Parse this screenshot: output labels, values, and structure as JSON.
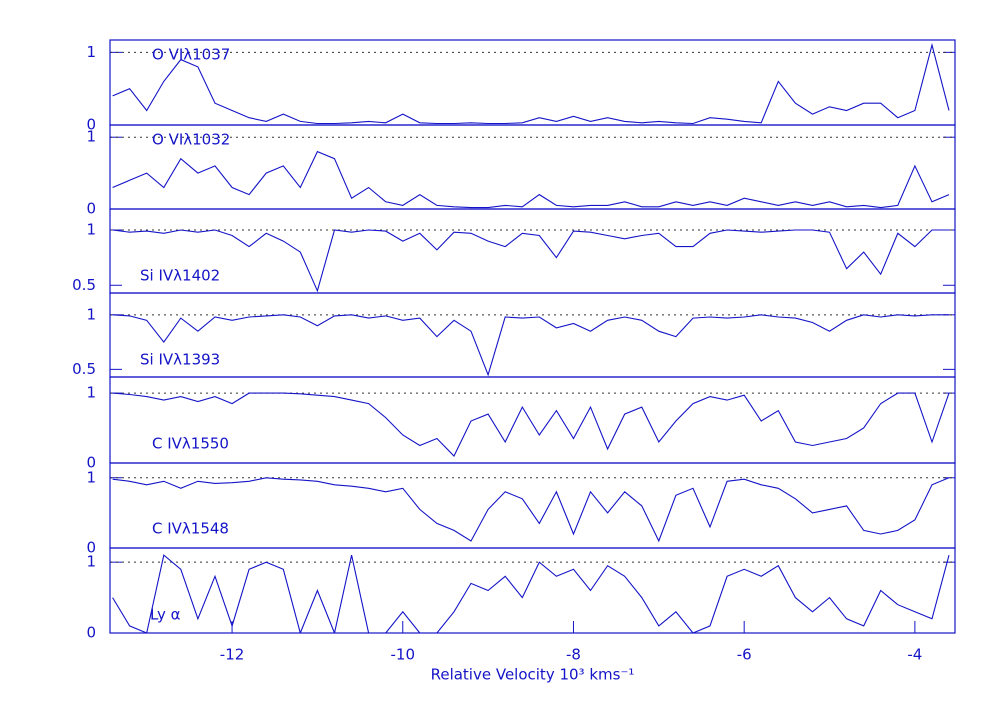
{
  "chart_data": [
    {
      "type": "line",
      "label": "O VIλ1037",
      "color": "#1414c8",
      "xlim": [
        -13.43,
        -3.53
      ],
      "ylim": [
        0,
        1.17
      ],
      "yticks": [
        0,
        1
      ],
      "grid": true,
      "x": [
        -13.4,
        -13.2,
        -13.0,
        -12.8,
        -12.6,
        -12.4,
        -12.2,
        -12.0,
        -11.8,
        -11.6,
        -11.4,
        -11.2,
        -11.0,
        -10.8,
        -10.6,
        -10.4,
        -10.2,
        -10.0,
        -9.8,
        -9.6,
        -9.4,
        -9.2,
        -9.0,
        -8.8,
        -8.6,
        -8.4,
        -8.2,
        -8.0,
        -7.8,
        -7.6,
        -7.4,
        -7.2,
        -7.0,
        -6.8,
        -6.6,
        -6.4,
        -6.2,
        -6.0,
        -5.8,
        -5.6,
        -5.4,
        -5.2,
        -5.0,
        -4.8,
        -4.6,
        -4.4,
        -4.2,
        -4.0,
        -3.8,
        -3.6
      ],
      "values": [
        0.4,
        0.5,
        0.2,
        0.6,
        0.9,
        0.8,
        0.3,
        0.2,
        0.1,
        0.05,
        0.15,
        0.05,
        0.02,
        0.02,
        0.03,
        0.05,
        0.03,
        0.15,
        0.03,
        0.02,
        0.02,
        0.03,
        0.02,
        0.02,
        0.03,
        0.1,
        0.05,
        0.12,
        0.05,
        0.1,
        0.05,
        0.03,
        0.05,
        0.03,
        0.02,
        0.1,
        0.08,
        0.05,
        0.03,
        0.6,
        0.3,
        0.15,
        0.25,
        0.2,
        0.3,
        0.3,
        0.1,
        0.2,
        1.1,
        0.2
      ]
    },
    {
      "type": "line",
      "label": "O VIλ1032",
      "color": "#1414c8",
      "xlim": [
        -13.43,
        -3.53
      ],
      "ylim": [
        0,
        1.17
      ],
      "yticks": [
        0,
        1
      ],
      "grid": true,
      "x": [
        -13.4,
        -13.2,
        -13.0,
        -12.8,
        -12.6,
        -12.4,
        -12.2,
        -12.0,
        -11.8,
        -11.6,
        -11.4,
        -11.2,
        -11.0,
        -10.8,
        -10.6,
        -10.4,
        -10.2,
        -10.0,
        -9.8,
        -9.6,
        -9.4,
        -9.2,
        -9.0,
        -8.8,
        -8.6,
        -8.4,
        -8.2,
        -8.0,
        -7.8,
        -7.6,
        -7.4,
        -7.2,
        -7.0,
        -6.8,
        -6.6,
        -6.4,
        -6.2,
        -6.0,
        -5.8,
        -5.6,
        -5.4,
        -5.2,
        -5.0,
        -4.8,
        -4.6,
        -4.4,
        -4.2,
        -4.0,
        -3.8,
        -3.6
      ],
      "values": [
        0.3,
        0.4,
        0.5,
        0.3,
        0.7,
        0.5,
        0.6,
        0.3,
        0.2,
        0.5,
        0.6,
        0.3,
        0.8,
        0.7,
        0.15,
        0.3,
        0.1,
        0.05,
        0.2,
        0.05,
        0.03,
        0.02,
        0.02,
        0.05,
        0.03,
        0.2,
        0.05,
        0.03,
        0.05,
        0.05,
        0.1,
        0.03,
        0.03,
        0.1,
        0.05,
        0.1,
        0.05,
        0.15,
        0.1,
        0.05,
        0.1,
        0.05,
        0.1,
        0.03,
        0.05,
        0.02,
        0.05,
        0.6,
        0.1,
        0.2
      ]
    },
    {
      "type": "line",
      "label": "Si IVλ1402",
      "color": "#1414c8",
      "xlim": [
        -13.43,
        -3.53
      ],
      "ylim": [
        0.43,
        1.19
      ],
      "yticks": [
        0.5,
        1
      ],
      "grid": true,
      "x": [
        -13.4,
        -13.2,
        -13.0,
        -12.8,
        -12.6,
        -12.4,
        -12.2,
        -12.0,
        -11.8,
        -11.6,
        -11.4,
        -11.2,
        -11.0,
        -10.8,
        -10.6,
        -10.4,
        -10.2,
        -10.0,
        -9.8,
        -9.6,
        -9.4,
        -9.2,
        -9.0,
        -8.8,
        -8.6,
        -8.4,
        -8.2,
        -8.0,
        -7.8,
        -7.6,
        -7.4,
        -7.2,
        -7.0,
        -6.8,
        -6.6,
        -6.4,
        -6.2,
        -6.0,
        -5.8,
        -5.6,
        -5.4,
        -5.2,
        -5.0,
        -4.8,
        -4.6,
        -4.4,
        -4.2,
        -4.0,
        -3.8,
        -3.6
      ],
      "values": [
        1.0,
        0.98,
        0.99,
        0.97,
        1.0,
        0.98,
        1.0,
        0.95,
        0.85,
        0.97,
        0.9,
        0.8,
        0.45,
        1.0,
        0.98,
        1.0,
        0.99,
        0.9,
        0.97,
        0.82,
        0.98,
        0.97,
        0.9,
        0.85,
        0.97,
        0.95,
        0.75,
        0.99,
        0.98,
        0.95,
        0.92,
        0.95,
        0.97,
        0.85,
        0.85,
        0.97,
        1.0,
        0.99,
        0.98,
        0.99,
        1.0,
        1.0,
        0.98,
        0.65,
        0.8,
        0.6,
        0.97,
        0.85,
        1.0,
        1.0
      ]
    },
    {
      "type": "line",
      "label": "Si IVλ1393",
      "color": "#1414c8",
      "xlim": [
        -13.43,
        -3.53
      ],
      "ylim": [
        0.43,
        1.2
      ],
      "yticks": [
        0.5,
        1
      ],
      "grid": true,
      "x": [
        -13.4,
        -13.2,
        -13.0,
        -12.8,
        -12.6,
        -12.4,
        -12.2,
        -12.0,
        -11.8,
        -11.6,
        -11.4,
        -11.2,
        -11.0,
        -10.8,
        -10.6,
        -10.4,
        -10.2,
        -10.0,
        -9.8,
        -9.6,
        -9.4,
        -9.2,
        -9.0,
        -8.8,
        -8.6,
        -8.4,
        -8.2,
        -8.0,
        -7.8,
        -7.6,
        -7.4,
        -7.2,
        -7.0,
        -6.8,
        -6.6,
        -6.4,
        -6.2,
        -6.0,
        -5.8,
        -5.6,
        -5.4,
        -5.2,
        -5.0,
        -4.8,
        -4.6,
        -4.4,
        -4.2,
        -4.0,
        -3.8,
        -3.6
      ],
      "values": [
        1.0,
        0.99,
        0.95,
        0.75,
        0.97,
        0.85,
        0.98,
        0.95,
        0.98,
        0.99,
        1.0,
        0.98,
        0.9,
        0.99,
        1.0,
        0.97,
        0.99,
        0.95,
        0.97,
        0.8,
        0.95,
        0.85,
        0.45,
        0.98,
        0.97,
        0.98,
        0.88,
        0.92,
        0.85,
        0.95,
        0.98,
        0.95,
        0.85,
        0.8,
        0.97,
        0.98,
        0.97,
        0.98,
        1.0,
        0.98,
        0.97,
        0.93,
        0.85,
        0.95,
        1.0,
        0.98,
        1.0,
        0.99,
        1.0,
        1.0
      ]
    },
    {
      "type": "line",
      "label": "C IVλ1550",
      "color": "#1414c8",
      "xlim": [
        -13.43,
        -3.53
      ],
      "ylim": [
        0,
        1.23
      ],
      "yticks": [
        0,
        1
      ],
      "grid": true,
      "x": [
        -13.4,
        -13.2,
        -13.0,
        -12.8,
        -12.6,
        -12.4,
        -12.2,
        -12.0,
        -11.8,
        -11.6,
        -11.4,
        -11.2,
        -11.0,
        -10.8,
        -10.6,
        -10.4,
        -10.2,
        -10.0,
        -9.8,
        -9.6,
        -9.4,
        -9.2,
        -9.0,
        -8.8,
        -8.6,
        -8.4,
        -8.2,
        -8.0,
        -7.8,
        -7.6,
        -7.4,
        -7.2,
        -7.0,
        -6.8,
        -6.6,
        -6.4,
        -6.2,
        -6.0,
        -5.8,
        -5.6,
        -5.4,
        -5.2,
        -5.0,
        -4.8,
        -4.6,
        -4.4,
        -4.2,
        -4.0,
        -3.8,
        -3.6
      ],
      "values": [
        1.0,
        0.98,
        0.95,
        0.9,
        0.95,
        0.88,
        0.95,
        0.85,
        1.0,
        1.0,
        1.0,
        0.99,
        0.97,
        0.95,
        0.9,
        0.85,
        0.65,
        0.4,
        0.25,
        0.35,
        0.1,
        0.6,
        0.7,
        0.3,
        0.8,
        0.4,
        0.75,
        0.35,
        0.8,
        0.2,
        0.7,
        0.8,
        0.3,
        0.6,
        0.85,
        0.95,
        0.9,
        0.97,
        0.6,
        0.75,
        0.3,
        0.25,
        0.3,
        0.35,
        0.5,
        0.85,
        1.0,
        1.0,
        0.3,
        1.0
      ]
    },
    {
      "type": "line",
      "label": "C IVλ1548",
      "color": "#1414c8",
      "xlim": [
        -13.43,
        -3.53
      ],
      "ylim": [
        0,
        1.21
      ],
      "yticks": [
        0,
        1
      ],
      "grid": true,
      "x": [
        -13.4,
        -13.2,
        -13.0,
        -12.8,
        -12.6,
        -12.4,
        -12.2,
        -12.0,
        -11.8,
        -11.6,
        -11.4,
        -11.2,
        -11.0,
        -10.8,
        -10.6,
        -10.4,
        -10.2,
        -10.0,
        -9.8,
        -9.6,
        -9.4,
        -9.2,
        -9.0,
        -8.8,
        -8.6,
        -8.4,
        -8.2,
        -8.0,
        -7.8,
        -7.6,
        -7.4,
        -7.2,
        -7.0,
        -6.8,
        -6.6,
        -6.4,
        -6.2,
        -6.0,
        -5.8,
        -5.6,
        -5.4,
        -5.2,
        -5.0,
        -4.8,
        -4.6,
        -4.4,
        -4.2,
        -4.0,
        -3.8,
        -3.6
      ],
      "values": [
        0.98,
        0.95,
        0.9,
        0.95,
        0.85,
        0.95,
        0.92,
        0.93,
        0.95,
        1.0,
        0.98,
        0.97,
        0.95,
        0.9,
        0.88,
        0.85,
        0.8,
        0.85,
        0.55,
        0.35,
        0.25,
        0.1,
        0.55,
        0.8,
        0.7,
        0.35,
        0.8,
        0.2,
        0.8,
        0.5,
        0.8,
        0.6,
        0.1,
        0.75,
        0.85,
        0.3,
        0.95,
        0.98,
        0.9,
        0.85,
        0.7,
        0.5,
        0.55,
        0.6,
        0.25,
        0.2,
        0.25,
        0.4,
        0.9,
        1.0
      ]
    },
    {
      "type": "line",
      "label": "Ly α",
      "color": "#1414c8",
      "xlim": [
        -13.43,
        -3.53
      ],
      "ylim": [
        0,
        1.2
      ],
      "yticks": [
        0,
        1
      ],
      "grid": true,
      "xticks": [
        -12,
        -10,
        -8,
        -6,
        -4
      ],
      "xlabel": "Relative Velocity 10³ kms⁻¹",
      "x": [
        -13.4,
        -13.2,
        -13.0,
        -12.8,
        -12.6,
        -12.4,
        -12.2,
        -12.0,
        -11.8,
        -11.6,
        -11.4,
        -11.2,
        -11.0,
        -10.8,
        -10.6,
        -10.4,
        -10.2,
        -10.0,
        -9.8,
        -9.6,
        -9.4,
        -9.2,
        -9.0,
        -8.8,
        -8.6,
        -8.4,
        -8.2,
        -8.0,
        -7.8,
        -7.6,
        -7.4,
        -7.2,
        -7.0,
        -6.8,
        -6.6,
        -6.4,
        -6.2,
        -6.0,
        -5.8,
        -5.6,
        -5.4,
        -5.2,
        -5.0,
        -4.8,
        -4.6,
        -4.4,
        -4.2,
        -4.0,
        -3.8,
        -3.6
      ],
      "values": [
        0.5,
        0.1,
        0.0,
        1.1,
        0.9,
        0.2,
        0.8,
        0.1,
        0.9,
        1.0,
        0.9,
        0.0,
        0.6,
        0.0,
        1.1,
        0.0,
        0.0,
        0.3,
        0.0,
        0.0,
        0.3,
        0.7,
        0.6,
        0.8,
        0.5,
        1.0,
        0.8,
        0.9,
        0.6,
        0.95,
        0.8,
        0.5,
        0.1,
        0.3,
        0.0,
        0.1,
        0.8,
        0.9,
        0.8,
        0.95,
        0.5,
        0.3,
        0.5,
        0.2,
        0.1,
        0.6,
        0.4,
        0.3,
        0.2,
        1.1
      ]
    }
  ]
}
